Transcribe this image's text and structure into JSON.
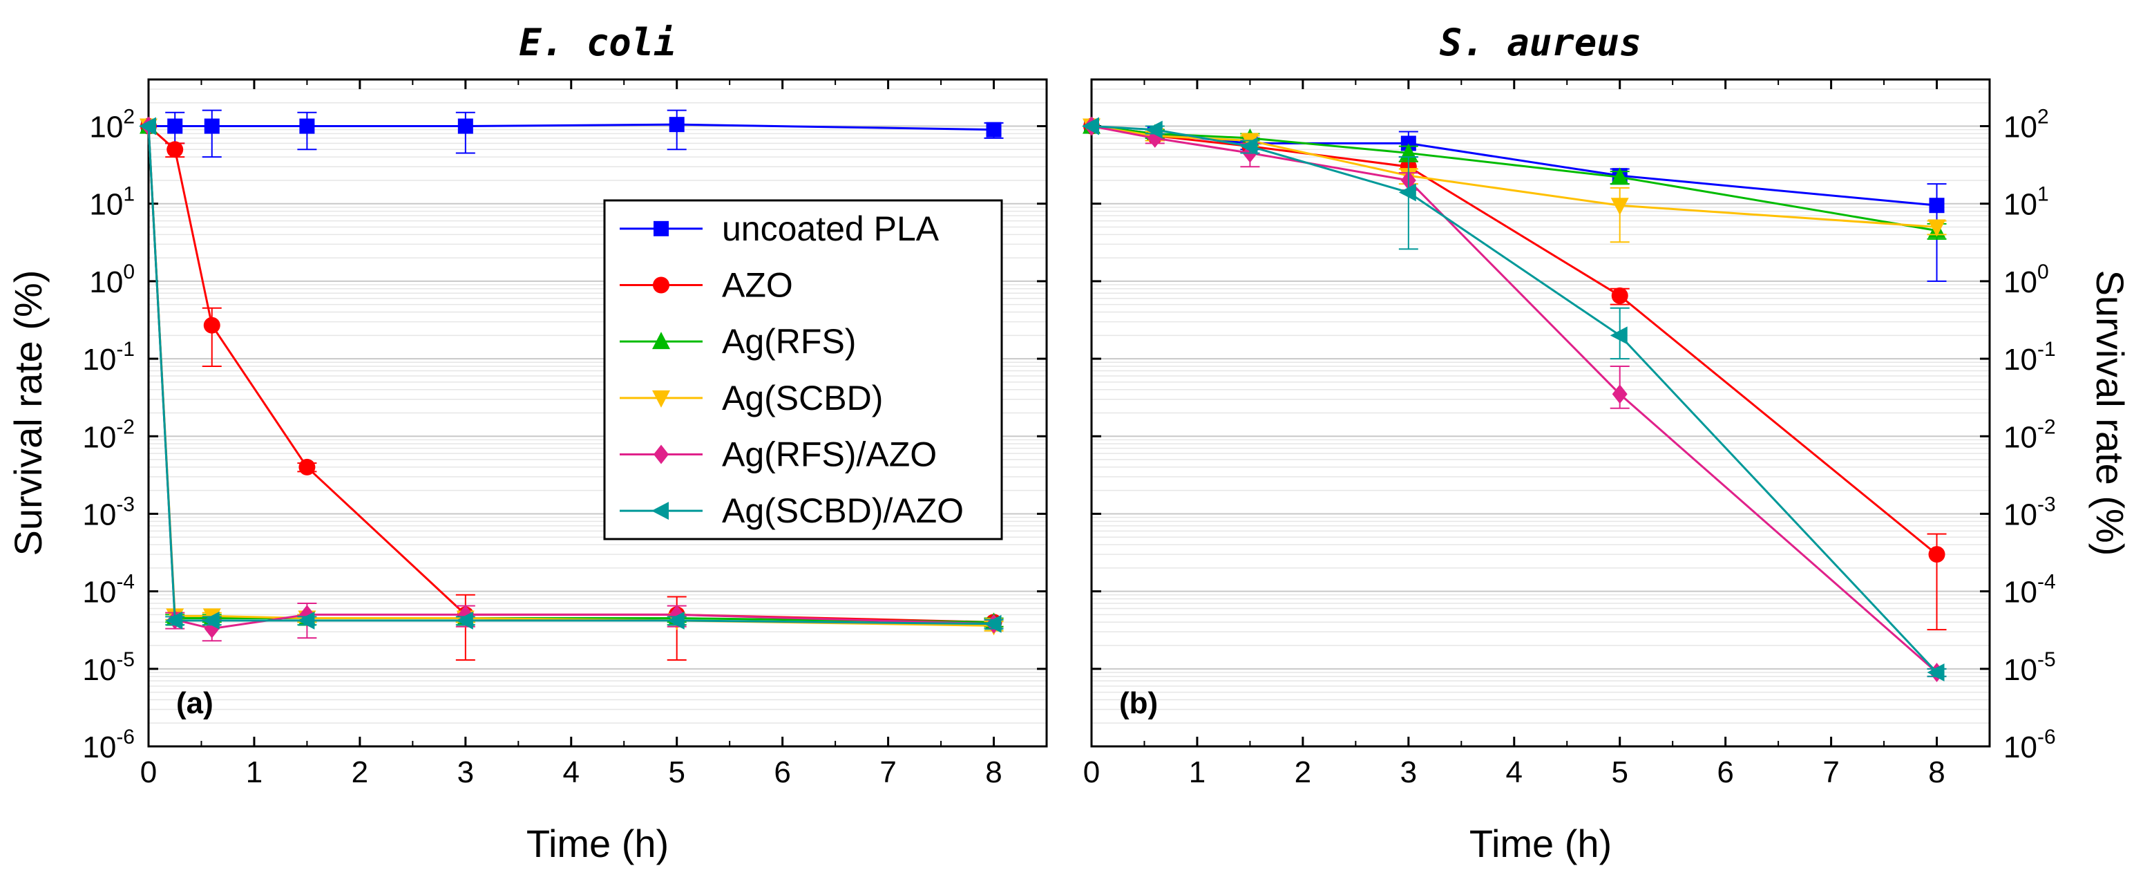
{
  "chart_data": [
    {
      "type": "line",
      "title": "E. coli",
      "panel_label": "(a)",
      "xlabel": "Time (h)",
      "ylabel": "Survival rate (%)",
      "yscale": "log",
      "xlim": [
        0,
        8.5
      ],
      "ylim": [
        1e-06,
        400
      ],
      "xticks": [
        0,
        1,
        2,
        3,
        4,
        5,
        6,
        7,
        8
      ],
      "yticks": [
        {
          "base": "10",
          "exp": "-6"
        },
        {
          "base": "10",
          "exp": "-5"
        },
        {
          "base": "10",
          "exp": "-4"
        },
        {
          "base": "10",
          "exp": "-3"
        },
        {
          "base": "10",
          "exp": "-2"
        },
        {
          "base": "10",
          "exp": "-1"
        },
        {
          "base": "10",
          "exp": "0"
        },
        {
          "base": "10",
          "exp": "1"
        },
        {
          "base": "10",
          "exp": "2"
        }
      ],
      "grid": true,
      "legend_position": "center",
      "series": [
        {
          "name": "uncoated PLA",
          "color": "#0000ff",
          "marker": "square",
          "x": [
            0,
            0.25,
            0.6,
            1.5,
            3,
            5,
            8
          ],
          "y": [
            100,
            100,
            100,
            100,
            100,
            105,
            90
          ],
          "err": [
            [
              0,
              40,
              60,
              50,
              55,
              55,
              20
            ],
            [
              0,
              50,
              60,
              50,
              50,
              55,
              20
            ]
          ]
        },
        {
          "name": "AZO",
          "color": "#ff0000",
          "marker": "circle",
          "x": [
            0,
            0.25,
            0.6,
            1.5,
            3,
            5,
            8
          ],
          "y": [
            100,
            50,
            0.27,
            0.004,
            5e-05,
            5e-05,
            4e-05
          ],
          "err": [
            [
              0,
              10,
              0.19,
              0.0005,
              3.7e-05,
              3.7e-05,
              5e-06
            ],
            [
              0,
              10,
              0.18,
              0.0005,
              4e-05,
              3.5e-05,
              5e-06
            ]
          ]
        },
        {
          "name": "Ag(RFS)",
          "color": "#00bb00",
          "marker": "triangle-up",
          "x": [
            0,
            0.25,
            0.6,
            1.5,
            3,
            5,
            8
          ],
          "y": [
            100,
            4.5e-05,
            4.5e-05,
            4.5e-05,
            4.5e-05,
            4.5e-05,
            4e-05
          ],
          "err": [
            [
              0,
              5e-06,
              5e-06,
              5e-06,
              5e-06,
              5e-06,
              5e-06
            ],
            [
              0,
              5e-06,
              5e-06,
              5e-06,
              5e-06,
              5e-06,
              5e-06
            ]
          ]
        },
        {
          "name": "Ag(SCBD)",
          "color": "#ffc000",
          "marker": "triangle-down",
          "x": [
            0,
            0.25,
            0.6,
            1.5,
            3,
            5,
            8
          ],
          "y": [
            100,
            4.8e-05,
            4.8e-05,
            4.5e-05,
            4.5e-05,
            4.2e-05,
            3.6e-05
          ],
          "err": [
            [
              0,
              5e-06,
              5e-06,
              5e-06,
              5e-06,
              5e-06,
              5e-06
            ],
            [
              0,
              5e-06,
              5e-06,
              5e-06,
              5e-06,
              5e-06,
              5e-06
            ]
          ]
        },
        {
          "name": "Ag(RFS)/AZO",
          "color": "#e0218a",
          "marker": "diamond",
          "x": [
            0,
            0.25,
            0.6,
            1.5,
            3,
            5,
            8
          ],
          "y": [
            100,
            4.3e-05,
            3.3e-05,
            5e-05,
            5e-05,
            5e-05,
            3.8e-05
          ],
          "err": [
            [
              0,
              1e-05,
              1e-05,
              2.5e-05,
              1.5e-05,
              1.5e-05,
              5e-06
            ],
            [
              0,
              1e-05,
              1e-05,
              2e-05,
              1.5e-05,
              1.5e-05,
              5e-06
            ]
          ]
        },
        {
          "name": "Ag(SCBD)/AZO",
          "color": "#009999",
          "marker": "triangle-left",
          "x": [
            0,
            0.25,
            0.6,
            1.5,
            3,
            5,
            8
          ],
          "y": [
            100,
            4.2e-05,
            4.2e-05,
            4.2e-05,
            4.2e-05,
            4.2e-05,
            3.8e-05
          ],
          "err": [
            [
              0,
              5e-06,
              5e-06,
              5e-06,
              5e-06,
              5e-06,
              5e-06
            ],
            [
              0,
              5e-06,
              5e-06,
              5e-06,
              5e-06,
              5e-06,
              5e-06
            ]
          ]
        }
      ]
    },
    {
      "type": "line",
      "title": "S. aureus",
      "panel_label": "(b)",
      "xlabel": "Time (h)",
      "ylabel": "Survival rate (%)",
      "yscale": "log",
      "xlim": [
        0,
        8.5
      ],
      "ylim": [
        1e-06,
        400
      ],
      "xticks": [
        0,
        1,
        2,
        3,
        4,
        5,
        6,
        7,
        8
      ],
      "yticks": [
        {
          "base": "10",
          "exp": "-6"
        },
        {
          "base": "10",
          "exp": "-5"
        },
        {
          "base": "10",
          "exp": "-4"
        },
        {
          "base": "10",
          "exp": "-3"
        },
        {
          "base": "10",
          "exp": "-2"
        },
        {
          "base": "10",
          "exp": "-1"
        },
        {
          "base": "10",
          "exp": "0"
        },
        {
          "base": "10",
          "exp": "1"
        },
        {
          "base": "10",
          "exp": "2"
        }
      ],
      "grid": true,
      "yaxis_side": "right",
      "series": [
        {
          "name": "uncoated PLA",
          "color": "#0000ff",
          "marker": "square",
          "x": [
            0,
            0.6,
            1.5,
            3,
            5,
            8
          ],
          "y": [
            100,
            80,
            60,
            60,
            23,
            9.5
          ],
          "err": [
            [
              0,
              10,
              10,
              20,
              5,
              8.5
            ],
            [
              0,
              10,
              10,
              25,
              5,
              8.5
            ]
          ]
        },
        {
          "name": "AZO",
          "color": "#ff0000",
          "marker": "circle",
          "x": [
            0,
            0.6,
            1.5,
            3,
            5,
            8
          ],
          "y": [
            100,
            75,
            55,
            30,
            0.65,
            0.0003
          ],
          "err": [
            [
              0,
              10,
              10,
              5,
              0.15,
              0.000268
            ],
            [
              0,
              10,
              10,
              5,
              0.15,
              0.00025
            ]
          ]
        },
        {
          "name": "Ag(RFS)",
          "color": "#00bb00",
          "marker": "triangle-up",
          "x": [
            0,
            0.6,
            1.5,
            3,
            5,
            8
          ],
          "y": [
            100,
            80,
            70,
            45,
            22,
            4.5
          ],
          "err": [
            [
              0,
              10,
              10,
              10,
              4,
              1
            ],
            [
              0,
              10,
              10,
              10,
              4,
              1
            ]
          ]
        },
        {
          "name": "Ag(SCBD)",
          "color": "#ffc000",
          "marker": "triangle-down",
          "x": [
            0,
            0.6,
            1.5,
            3,
            5,
            8
          ],
          "y": [
            100,
            75,
            65,
            23,
            9.5,
            5
          ],
          "err": [
            [
              0,
              10,
              10,
              5,
              6.3,
              1
            ],
            [
              0,
              10,
              10,
              5,
              6.5,
              1
            ]
          ]
        },
        {
          "name": "Ag(RFS)/AZO",
          "color": "#e0218a",
          "marker": "diamond",
          "x": [
            0,
            0.6,
            1.5,
            3,
            5,
            8
          ],
          "y": [
            100,
            70,
            45,
            20,
            0.035,
            9e-06
          ],
          "err": [
            [
              0,
              10,
              15,
              5,
              0.012,
              1e-06
            ],
            [
              0,
              10,
              15,
              5,
              0.045,
              1e-06
            ]
          ]
        },
        {
          "name": "Ag(SCBD)/AZO",
          "color": "#009999",
          "marker": "triangle-left",
          "x": [
            0,
            0.6,
            1.5,
            3,
            5,
            8
          ],
          "y": [
            100,
            90,
            55,
            14,
            0.2,
            9e-06
          ],
          "err": [
            [
              0,
              10,
              10,
              11.4,
              0.1,
              1e-06
            ],
            [
              0,
              10,
              10,
              26,
              0.25,
              1e-06
            ]
          ]
        }
      ]
    }
  ]
}
